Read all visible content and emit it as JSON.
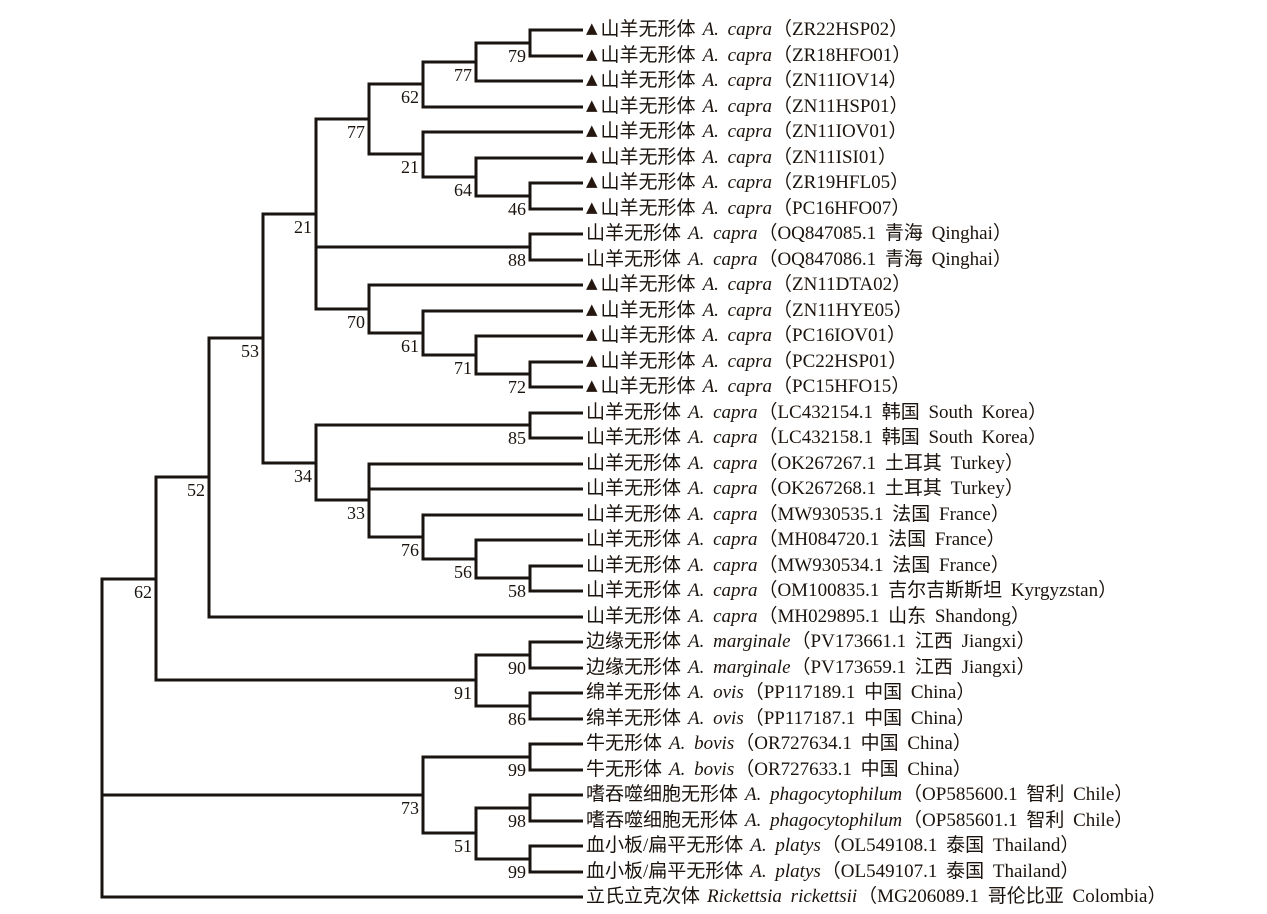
{
  "figure": {
    "kind": "phylogenetic-tree",
    "marker_glyph": "▲",
    "colors": {
      "background": "#ffffff",
      "branch_line": "#1a1410",
      "label_text": "#1b130d",
      "marker": "#251710"
    }
  },
  "tree": {
    "leaves": [
      {
        "marker": true,
        "cn": "山羊无形体",
        "sci": "A. capra",
        "paren": "（ZR22HSP02）"
      },
      {
        "marker": true,
        "cn": "山羊无形体",
        "sci": "A. capra",
        "paren": "（ZR18HFO01）"
      },
      {
        "marker": true,
        "cn": "山羊无形体",
        "sci": "A. capra",
        "paren": "（ZN11IOV14）"
      },
      {
        "marker": true,
        "cn": "山羊无形体",
        "sci": "A. capra",
        "paren": "（ZN11HSP01）"
      },
      {
        "marker": true,
        "cn": "山羊无形体",
        "sci": "A. capra",
        "paren": "（ZN11IOV01）"
      },
      {
        "marker": true,
        "cn": "山羊无形体",
        "sci": "A. capra",
        "paren": "（ZN11ISI01）"
      },
      {
        "marker": true,
        "cn": "山羊无形体",
        "sci": "A. capra",
        "paren": "（ZR19HFL05）"
      },
      {
        "marker": true,
        "cn": "山羊无形体",
        "sci": "A. capra",
        "paren": "（PC16HFO07）"
      },
      {
        "marker": false,
        "cn": "山羊无形体",
        "sci": "A. capra",
        "paren": "（OQ847085.1 青海 Qinghai）"
      },
      {
        "marker": false,
        "cn": "山羊无形体",
        "sci": "A. capra",
        "paren": "（OQ847086.1 青海 Qinghai）"
      },
      {
        "marker": true,
        "cn": "山羊无形体",
        "sci": "A. capra",
        "paren": "（ZN11DTA02）"
      },
      {
        "marker": true,
        "cn": "山羊无形体",
        "sci": "A. capra",
        "paren": "（ZN11HYE05）"
      },
      {
        "marker": true,
        "cn": "山羊无形体",
        "sci": "A. capra",
        "paren": "（PC16IOV01）"
      },
      {
        "marker": true,
        "cn": "山羊无形体",
        "sci": "A. capra",
        "paren": "（PC22HSP01）"
      },
      {
        "marker": true,
        "cn": "山羊无形体",
        "sci": "A. capra",
        "paren": "（PC15HFO15）"
      },
      {
        "marker": false,
        "cn": "山羊无形体",
        "sci": "A. capra",
        "paren": "（LC432154.1 韩国 South Korea）"
      },
      {
        "marker": false,
        "cn": "山羊无形体",
        "sci": "A. capra",
        "paren": "（LC432158.1 韩国 South Korea）"
      },
      {
        "marker": false,
        "cn": "山羊无形体",
        "sci": "A. capra",
        "paren": "（OK267267.1 土耳其 Turkey）"
      },
      {
        "marker": false,
        "cn": "山羊无形体",
        "sci": "A. capra",
        "paren": "（OK267268.1 土耳其 Turkey）"
      },
      {
        "marker": false,
        "cn": "山羊无形体",
        "sci": "A. capra",
        "paren": "（MW930535.1 法国 France）"
      },
      {
        "marker": false,
        "cn": "山羊无形体",
        "sci": "A. capra",
        "paren": "（MH084720.1 法国 France）"
      },
      {
        "marker": false,
        "cn": "山羊无形体",
        "sci": "A. capra",
        "paren": "（MW930534.1 法国 France）"
      },
      {
        "marker": false,
        "cn": "山羊无形体",
        "sci": "A. capra",
        "paren": "（OM100835.1 吉尔吉斯斯坦 Kyrgyzstan）"
      },
      {
        "marker": false,
        "cn": "山羊无形体",
        "sci": "A. capra",
        "paren": "（MH029895.1 山东 Shandong）"
      },
      {
        "marker": false,
        "cn": "边缘无形体",
        "sci": "A. marginale",
        "paren": "（PV173661.1 江西 Jiangxi）"
      },
      {
        "marker": false,
        "cn": "边缘无形体",
        "sci": "A. marginale",
        "paren": "（PV173659.1 江西 Jiangxi）"
      },
      {
        "marker": false,
        "cn": "绵羊无形体",
        "sci": "A. ovis",
        "paren": "（PP117189.1 中国 China）"
      },
      {
        "marker": false,
        "cn": "绵羊无形体",
        "sci": "A. ovis",
        "paren": "（PP117187.1 中国 China）"
      },
      {
        "marker": false,
        "cn": "牛无形体",
        "sci": "A. bovis",
        "paren": "（OR727634.1 中国 China）"
      },
      {
        "marker": false,
        "cn": "牛无形体",
        "sci": "A. bovis",
        "paren": "（OR727633.1 中国 China）"
      },
      {
        "marker": false,
        "cn": "嗜吞噬细胞无形体",
        "sci": "A. phagocytophilum",
        "paren": "（OP585600.1 智利 Chile）"
      },
      {
        "marker": false,
        "cn": "嗜吞噬细胞无形体",
        "sci": "A. phagocytophilum",
        "paren": "（OP585601.1 智利 Chile）"
      },
      {
        "marker": false,
        "cn": "血小板/扁平无形体",
        "sci": "A. platys",
        "paren": "（OL549108.1 泰国 Thailand）"
      },
      {
        "marker": false,
        "cn": "血小板/扁平无形体",
        "sci": "A. platys",
        "paren": "（OL549107.1 泰国 Thailand）"
      },
      {
        "marker": false,
        "cn": "立氏立克次体",
        "sci": "Rickettsia rickettsii",
        "paren": "（MG206089.1 哥伦比亚 Colombia）"
      }
    ],
    "topology": {
      "bs": null,
      "c": [
        {
          "bs": 62,
          "c": [
            {
              "bs": 52,
              "c": [
                {
                  "bs": 53,
                  "c": [
                    {
                      "bs": 21,
                      "c": [
                        {
                          "bs": 77,
                          "c": [
                            {
                              "bs": 62,
                              "c": [
                                {
                                  "bs": 77,
                                  "c": [
                                    {
                                      "bs": 79,
                                      "c": [
                                        0,
                                        1
                                      ]
                                    },
                                    2
                                  ]
                                },
                                3
                              ]
                            },
                            {
                              "bs": 21,
                              "c": [
                                4,
                                {
                                  "bs": 64,
                                  "c": [
                                    5,
                                    {
                                      "bs": 46,
                                      "c": [
                                        6,
                                        7
                                      ]
                                    }
                                  ]
                                }
                              ]
                            }
                          ]
                        },
                        {
                          "bs": 88,
                          "c": [
                            8,
                            9
                          ]
                        },
                        {
                          "bs": 70,
                          "c": [
                            10,
                            {
                              "bs": 61,
                              "c": [
                                11,
                                {
                                  "bs": 71,
                                  "c": [
                                    12,
                                    {
                                      "bs": 72,
                                      "c": [
                                        13,
                                        14
                                      ]
                                    }
                                  ]
                                }
                              ]
                            }
                          ]
                        }
                      ]
                    },
                    {
                      "bs": 34,
                      "c": [
                        {
                          "bs": 85,
                          "c": [
                            15,
                            16
                          ]
                        },
                        {
                          "bs": 33,
                          "c": [
                            17,
                            18,
                            {
                              "bs": 76,
                              "c": [
                                19,
                                {
                                  "bs": 56,
                                  "c": [
                                    20,
                                    {
                                      "bs": 58,
                                      "c": [
                                        21,
                                        22
                                      ]
                                    }
                                  ]
                                }
                              ]
                            }
                          ]
                        }
                      ]
                    }
                  ]
                },
                23
              ]
            },
            {
              "bs": 91,
              "c": [
                {
                  "bs": 90,
                  "c": [
                    24,
                    25
                  ]
                },
                {
                  "bs": 86,
                  "c": [
                    26,
                    27
                  ]
                }
              ]
            }
          ]
        },
        {
          "bs": 73,
          "c": [
            {
              "bs": 99,
              "c": [
                28,
                29
              ]
            },
            {
              "bs": 51,
              "c": [
                {
                  "bs": 98,
                  "c": [
                    30,
                    31
                  ]
                },
                {
                  "bs": 99,
                  "c": [
                    32,
                    33
                  ]
                }
              ]
            }
          ]
        },
        34
      ]
    }
  }
}
